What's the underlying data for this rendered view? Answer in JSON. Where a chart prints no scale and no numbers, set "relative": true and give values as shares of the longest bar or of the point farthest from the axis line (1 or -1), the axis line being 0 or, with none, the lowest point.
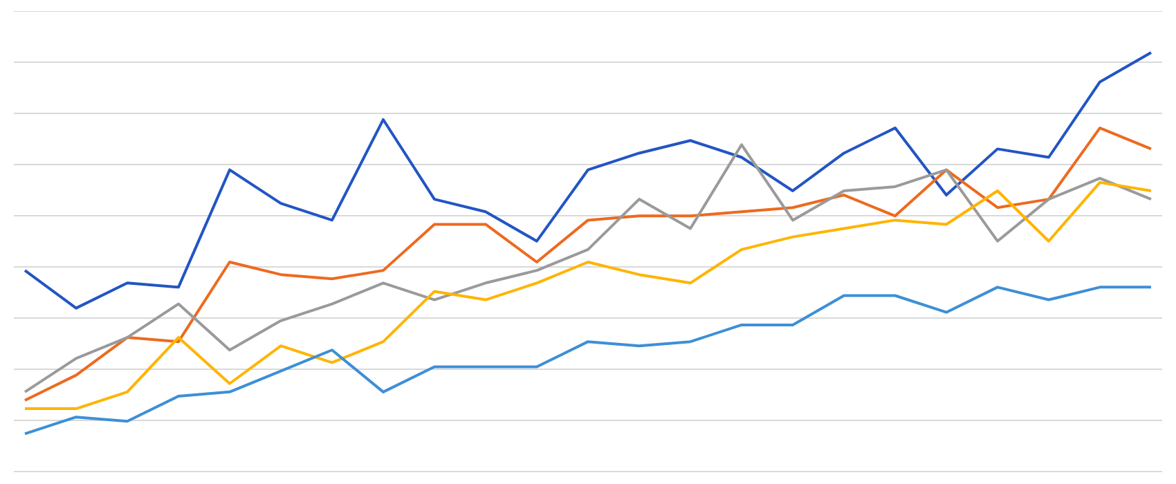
{
  "chart_data": {
    "type": "line",
    "relative": true,
    "grid": "y",
    "legend": false,
    "marker": "none",
    "line_style": "solid",
    "categories": [
      null,
      null,
      null,
      null,
      null,
      null,
      null,
      null,
      null,
      null,
      null,
      null,
      null,
      null,
      null,
      null,
      null,
      null,
      null,
      null,
      null,
      null,
      null
    ],
    "series": [
      {
        "color": "#2255c4",
        "values": [
          0.48,
          0.39,
          0.45,
          0.44,
          0.72,
          0.64,
          0.6,
          0.84,
          0.65,
          0.62,
          0.55,
          0.72,
          0.76,
          0.79,
          0.75,
          0.67,
          0.76,
          0.82,
          0.66,
          0.77,
          0.75,
          0.93,
          1
        ]
      },
      {
        "color": "#ed6a1f",
        "values": [
          0.17,
          0.23,
          0.32,
          0.31,
          0.5,
          0.47,
          0.46,
          0.48,
          0.59,
          0.59,
          0.5,
          0.6,
          0.61,
          0.61,
          0.62,
          0.63,
          0.66,
          0.61,
          0.72,
          0.63,
          0.65,
          0.82,
          0.77
        ]
      },
      {
        "color": "#9a9a9a",
        "values": [
          0.19,
          0.27,
          0.32,
          0.4,
          0.29,
          0.36,
          0.4,
          0.45,
          0.41,
          0.45,
          0.48,
          0.53,
          0.65,
          0.58,
          0.78,
          0.6,
          0.67,
          0.68,
          0.72,
          0.55,
          0.65,
          0.7,
          0.65
        ]
      },
      {
        "color": "#ffb400",
        "values": [
          0.15,
          0.15,
          0.19,
          0.32,
          0.21,
          0.3,
          0.26,
          0.31,
          0.43,
          0.41,
          0.45,
          0.5,
          0.47,
          0.45,
          0.53,
          0.56,
          0.58,
          0.6,
          0.59,
          0.67,
          0.55,
          0.69,
          0.67
        ]
      },
      {
        "color": "#3d8fd6",
        "values": [
          0.09,
          0.13,
          0.12,
          0.18,
          0.19,
          0.24,
          0.29,
          0.19,
          0.25,
          0.25,
          0.25,
          0.31,
          0.3,
          0.31,
          0.35,
          0.35,
          0.42,
          0.42,
          0.38,
          0.44,
          0.41,
          0.44,
          0.44
        ]
      }
    ]
  }
}
